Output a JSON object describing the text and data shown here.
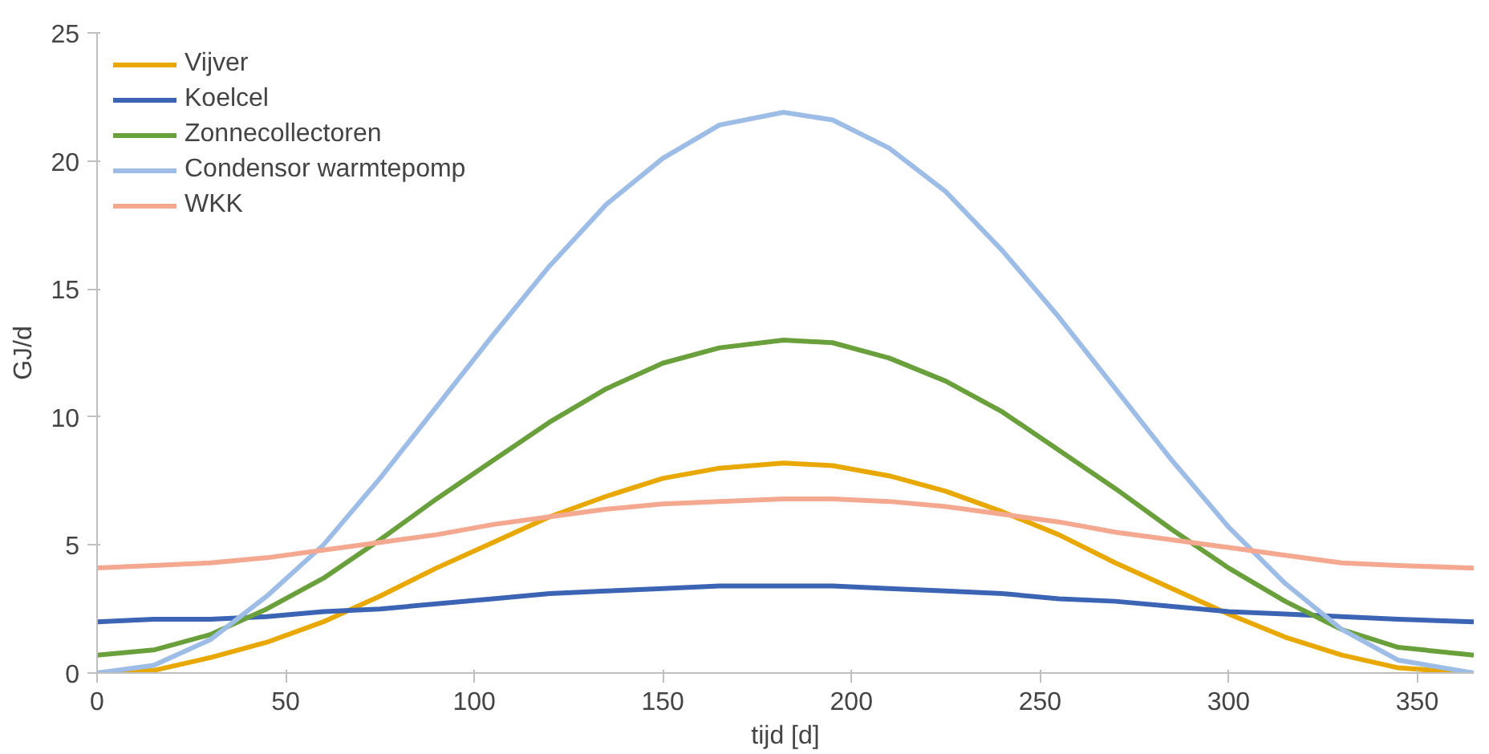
{
  "chart_data": {
    "type": "line",
    "xlabel": "tijd [d]",
    "ylabel": "GJ/d",
    "x": [
      0,
      15,
      30,
      45,
      60,
      75,
      90,
      105,
      120,
      135,
      150,
      165,
      182,
      195,
      210,
      225,
      240,
      255,
      270,
      285,
      300,
      315,
      330,
      345,
      365
    ],
    "series": [
      {
        "name": "Vijver",
        "color": "#e8a800",
        "values": [
          0,
          0.1,
          0.6,
          1.2,
          2.0,
          3.0,
          4.1,
          5.1,
          6.1,
          6.9,
          7.6,
          8.0,
          8.2,
          8.1,
          7.7,
          7.1,
          6.3,
          5.4,
          4.3,
          3.3,
          2.3,
          1.4,
          0.7,
          0.2,
          0
        ]
      },
      {
        "name": "Koelcel",
        "color": "#3c64b4",
        "values": [
          2.0,
          2.1,
          2.1,
          2.2,
          2.4,
          2.5,
          2.7,
          2.9,
          3.1,
          3.2,
          3.3,
          3.4,
          3.4,
          3.4,
          3.3,
          3.2,
          3.1,
          2.9,
          2.8,
          2.6,
          2.4,
          2.3,
          2.2,
          2.1,
          2.0
        ]
      },
      {
        "name": "Zonnecollectoren",
        "color": "#6aa03c",
        "values": [
          0.7,
          0.9,
          1.5,
          2.5,
          3.7,
          5.2,
          6.8,
          8.3,
          9.8,
          11.1,
          12.1,
          12.7,
          13.0,
          12.9,
          12.3,
          11.4,
          10.2,
          8.7,
          7.2,
          5.6,
          4.1,
          2.8,
          1.7,
          1.0,
          0.7
        ]
      },
      {
        "name": "Condensor warmtepomp",
        "color": "#9dbde6",
        "values": [
          0,
          0.3,
          1.3,
          3.0,
          5.0,
          7.6,
          10.4,
          13.2,
          15.9,
          18.3,
          20.1,
          21.4,
          21.9,
          21.6,
          20.5,
          18.8,
          16.5,
          13.9,
          11.1,
          8.3,
          5.7,
          3.5,
          1.7,
          0.5,
          0
        ]
      },
      {
        "name": "WKK",
        "color": "#f4a890",
        "values": [
          4.1,
          4.2,
          4.3,
          4.5,
          4.8,
          5.1,
          5.4,
          5.8,
          6.1,
          6.4,
          6.6,
          6.7,
          6.8,
          6.8,
          6.7,
          6.5,
          6.2,
          5.9,
          5.5,
          5.2,
          4.9,
          4.6,
          4.3,
          4.2,
          4.1
        ]
      }
    ],
    "xlim": [
      0,
      365
    ],
    "xticks": [
      0,
      50,
      100,
      150,
      200,
      250,
      300,
      350
    ],
    "ylim": [
      0,
      25
    ],
    "yticks": [
      0,
      5,
      10,
      15,
      20,
      25
    ],
    "grid": false,
    "legend": "top left",
    "marker": "none",
    "line_style": "solid"
  }
}
